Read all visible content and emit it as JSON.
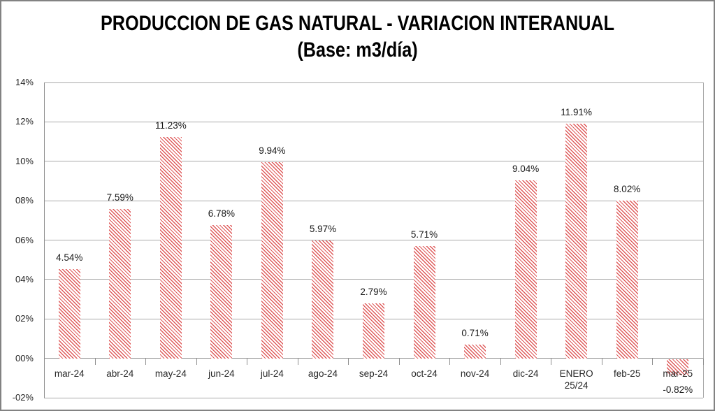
{
  "title": {
    "line1": "PRODUCCION DE GAS NATURAL - VARIACION INTERANUAL",
    "line2": "(Base: m3/día)"
  },
  "chart_data": {
    "type": "bar",
    "title": "PRODUCCION DE GAS NATURAL - VARIACION INTERANUAL (Base: m3/día)",
    "categories": [
      "mar-24",
      "abr-24",
      "may-24",
      "jun-24",
      "jul-24",
      "ago-24",
      "sep-24",
      "oct-24",
      "nov-24",
      "dic-24",
      "ENERO\n25/24",
      "feb-25",
      "mar-25"
    ],
    "values": [
      4.54,
      7.59,
      11.23,
      6.78,
      9.94,
      5.97,
      2.79,
      5.71,
      0.71,
      9.04,
      11.91,
      8.02,
      -0.82
    ],
    "data_labels": [
      "4.54%",
      "7.59%",
      "11.23%",
      "6.78%",
      "9.94%",
      "5.97%",
      "2.79%",
      "5.71%",
      "0.71%",
      "9.04%",
      "11.91%",
      "8.02%",
      "-0.82%"
    ],
    "xlabel": "",
    "ylabel": "",
    "ylim": [
      -2,
      14
    ],
    "ytick_step": 2,
    "ytick_labels_top_to_bottom": [
      "14%",
      "12%",
      "10%",
      "08%",
      "06%",
      "04%",
      "02%",
      "00%",
      "-02%"
    ],
    "grid": true,
    "legend": false,
    "styles": {
      "bar_pattern": "thin-diagonal-stripes",
      "stripe_color": "#df5a5a",
      "bar_background": "#ffffff",
      "gridline_color": "#a8a8a8",
      "axis_color": "#8f8f8f",
      "text_color": "#262626"
    }
  }
}
